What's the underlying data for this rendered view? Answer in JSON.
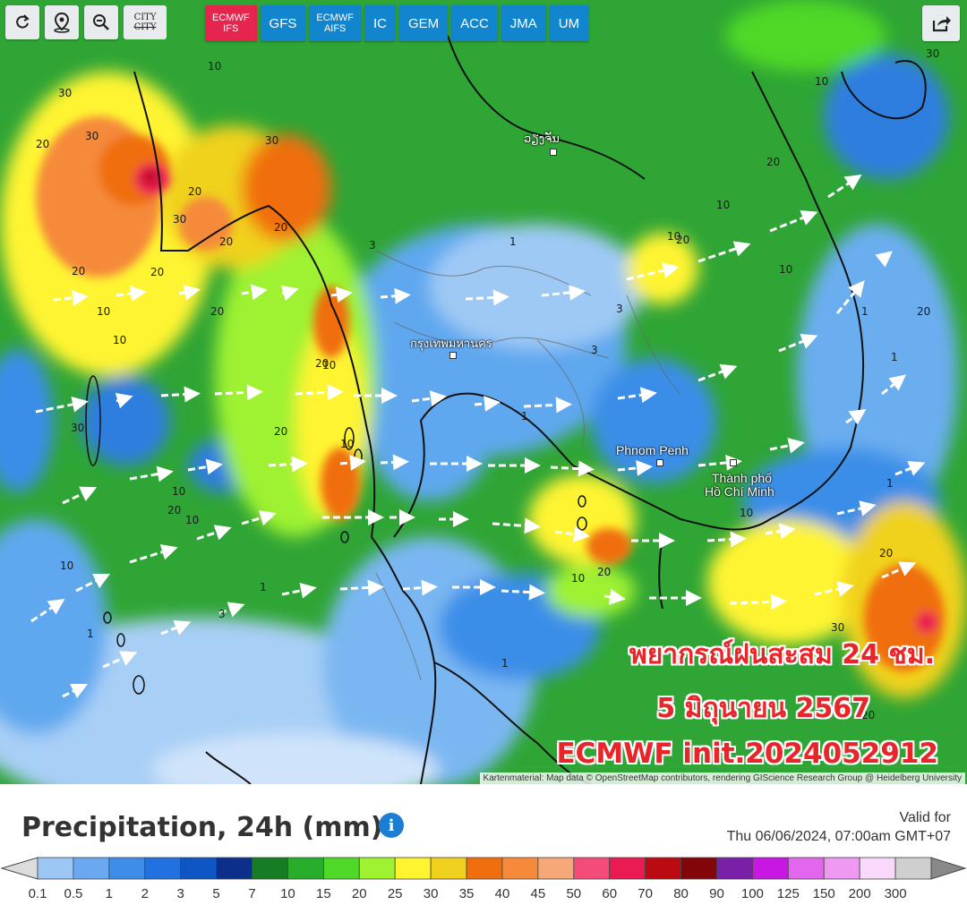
{
  "toolbar": {
    "refresh_icon": "refresh-icon",
    "location_icon": "location-pin-icon",
    "zoom_icon": "zoom-out-icon",
    "city_top": "CITY",
    "city_bottom": "CITY"
  },
  "models": [
    {
      "line1": "ECMWF",
      "line2": "IFS",
      "active": true
    },
    {
      "line1": "GFS",
      "line2": "",
      "active": false
    },
    {
      "line1": "ECMWF",
      "line2": "AIFS",
      "active": false
    },
    {
      "line1": "IC",
      "line2": "",
      "active": false
    },
    {
      "line1": "GEM",
      "line2": "",
      "active": false
    },
    {
      "line1": "ACC",
      "line2": "",
      "active": false
    },
    {
      "line1": "JMA",
      "line2": "",
      "active": false
    },
    {
      "line1": "UM",
      "line2": "",
      "active": false
    }
  ],
  "map": {
    "places": {
      "bangkok": "กรุงเทพมหานคร",
      "vientiane": "ວຽງຈັນ",
      "phnom_penh": "Phnom Penh",
      "hcm_line1": "Thành phố",
      "hcm_line2": "Hồ Chí Minh"
    },
    "overlay_line1": "พยากรณ์ฝนสะสม 24 ชม.",
    "overlay_line2": "5 มิถุนายน 2567",
    "overlay_line3": "ECMWF init.2024052912",
    "attribution": "Kartenmaterial: Map data © OpenStreetMap contributors, rendering GIScience Research Group @ Heidelberg University",
    "contour_labels": [
      "30",
      "20",
      "30",
      "10",
      "20",
      "20",
      "30",
      "30",
      "20",
      "20",
      "20",
      "10",
      "20",
      "10",
      "10",
      "30",
      "20",
      "10",
      "10",
      "20",
      "20",
      "10",
      "10",
      "1",
      "1",
      "3",
      "3",
      "1",
      "3",
      "1",
      "10",
      "20",
      "10",
      "10",
      "20",
      "20",
      "30",
      "10",
      "1",
      "1",
      "1",
      "10",
      "20",
      "30",
      "20",
      "20",
      "10",
      "1",
      "3"
    ]
  },
  "legend": {
    "title": "Precipitation, 24h (mm)",
    "valid_line1": "Valid for",
    "valid_line2": "Thu 06/06/2024, 07:00am GMT+07",
    "ticks": [
      "0.1",
      "0.5",
      "1",
      "2",
      "3",
      "5",
      "7",
      "10",
      "15",
      "20",
      "25",
      "30",
      "35",
      "40",
      "45",
      "50",
      "60",
      "70",
      "80",
      "90",
      "100",
      "125",
      "150",
      "200",
      "300"
    ],
    "colors": [
      "#9cc7f5",
      "#6aa9f0",
      "#3d8de9",
      "#2171e0",
      "#0f56c5",
      "#0b2f8a",
      "#167d24",
      "#28ae2a",
      "#4fd828",
      "#9ef230",
      "#fff430",
      "#f0d21e",
      "#f06e0e",
      "#f58a3a",
      "#f6a878",
      "#f54b78",
      "#ea1b52",
      "#bb0a12",
      "#82050a",
      "#7a1fa8",
      "#c817e2",
      "#e366ee",
      "#ef99f2",
      "#f8d8fb",
      "#cfcfcf"
    ]
  }
}
